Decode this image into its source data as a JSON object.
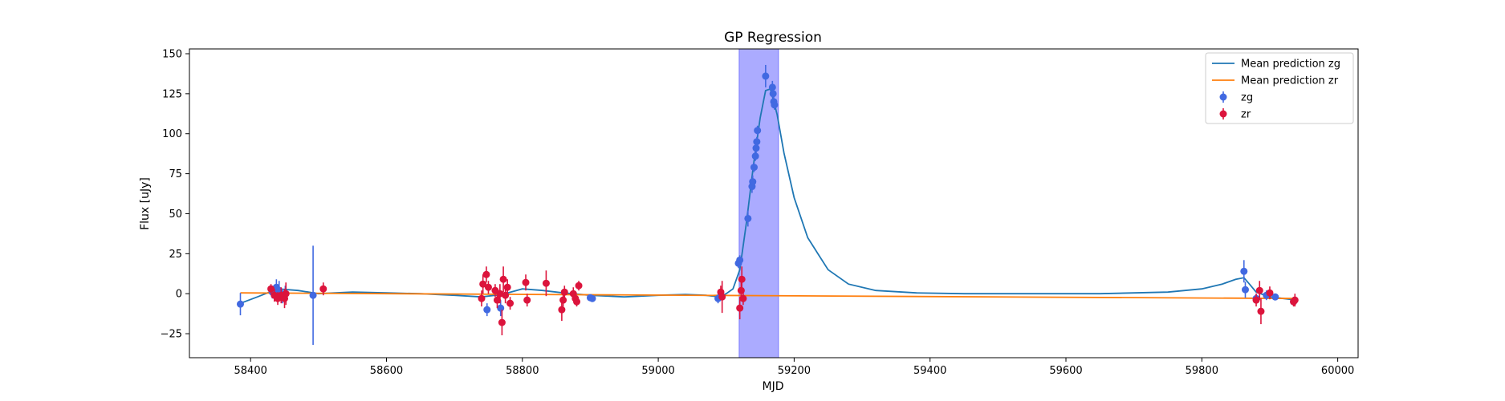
{
  "chart_data": {
    "type": "scatter",
    "title": "GP Regression",
    "xlabel": "MJD",
    "ylabel": "Flux [uJy]",
    "xlim": [
      58310,
      60030
    ],
    "ylim": [
      -40,
      153
    ],
    "xticks": [
      58400,
      58600,
      58800,
      59000,
      59200,
      59400,
      59600,
      59800,
      60000
    ],
    "yticks": [
      -25,
      0,
      25,
      50,
      75,
      100,
      125,
      150
    ],
    "grid": false,
    "legend_position": "top-right",
    "shaded_region": {
      "x_range": [
        59119,
        59177
      ],
      "color": "#0000ff",
      "alpha": 0.33
    },
    "series": [
      {
        "name": "Mean prediction zg",
        "kind": "line",
        "color": "#1f77b4",
        "x": [
          58385,
          58410,
          58440,
          58470,
          58500,
          58550,
          58600,
          58650,
          58700,
          58740,
          58770,
          58800,
          58830,
          58860,
          58900,
          58950,
          59000,
          59040,
          59070,
          59090,
          59100,
          59110,
          59120,
          59130,
          59140,
          59150,
          59158,
          59165,
          59175,
          59185,
          59200,
          59220,
          59250,
          59280,
          59320,
          59380,
          59450,
          59550,
          59650,
          59750,
          59800,
          59830,
          59850,
          59862,
          59870,
          59880,
          59900,
          59940
        ],
        "y": [
          -6,
          -2,
          3,
          2,
          0,
          1,
          0.5,
          0,
          -1,
          -2,
          -0.5,
          3,
          2,
          0.5,
          -1,
          -2,
          -1,
          -0.5,
          -1,
          -2,
          0,
          3,
          15,
          45,
          80,
          110,
          127,
          128,
          112,
          88,
          60,
          35,
          15,
          6,
          2,
          0.5,
          0,
          0,
          0,
          1,
          3,
          6,
          9,
          10,
          6,
          1,
          -2,
          -4
        ]
      },
      {
        "name": "Mean prediction zr",
        "kind": "line",
        "color": "#ff7f0e",
        "x": [
          58385,
          59940
        ],
        "y": [
          0.5,
          -3
        ]
      },
      {
        "name": "zg",
        "kind": "errorbar",
        "color": "#4169e1",
        "points": [
          {
            "x": 58385,
            "y": -6.5,
            "err": 7
          },
          {
            "x": 58432,
            "y": 1,
            "err": 4
          },
          {
            "x": 58438,
            "y": 4,
            "err": 5
          },
          {
            "x": 58442,
            "y": 2,
            "err": 6
          },
          {
            "x": 58447,
            "y": -2,
            "err": 4
          },
          {
            "x": 58451,
            "y": 0,
            "err": 5
          },
          {
            "x": 58492,
            "y": -1,
            "err": 31
          },
          {
            "x": 58748,
            "y": -10,
            "err": 4
          },
          {
            "x": 58768,
            "y": -9,
            "err": 5
          },
          {
            "x": 58900,
            "y": -2.5,
            "err": 2
          },
          {
            "x": 58903,
            "y": -3,
            "err": 2
          },
          {
            "x": 59088,
            "y": -3,
            "err": 3
          },
          {
            "x": 59118,
            "y": 19,
            "err": 3
          },
          {
            "x": 59120,
            "y": 21,
            "err": 3
          },
          {
            "x": 59132,
            "y": 47,
            "err": 5
          },
          {
            "x": 59138,
            "y": 67,
            "err": 4
          },
          {
            "x": 59139,
            "y": 70,
            "err": 4
          },
          {
            "x": 59141,
            "y": 79,
            "err": 3
          },
          {
            "x": 59143,
            "y": 86,
            "err": 3
          },
          {
            "x": 59144,
            "y": 91,
            "err": 3
          },
          {
            "x": 59145,
            "y": 95,
            "err": 3
          },
          {
            "x": 59146,
            "y": 102,
            "err": 3
          },
          {
            "x": 59158,
            "y": 136,
            "err": 7
          },
          {
            "x": 59168,
            "y": 129,
            "err": 4
          },
          {
            "x": 59169,
            "y": 125,
            "err": 3
          },
          {
            "x": 59170,
            "y": 120,
            "err": 3
          },
          {
            "x": 59171,
            "y": 118,
            "err": 3
          },
          {
            "x": 59862,
            "y": 14,
            "err": 7
          },
          {
            "x": 59864,
            "y": 2.5,
            "err": 5
          },
          {
            "x": 59880,
            "y": -3,
            "err": 3
          },
          {
            "x": 59895,
            "y": -1,
            "err": 3
          },
          {
            "x": 59908,
            "y": -2,
            "err": 2
          },
          {
            "x": 59935,
            "y": -5,
            "err": 2
          }
        ]
      },
      {
        "name": "zr",
        "kind": "errorbar",
        "color": "#dc143c",
        "points": [
          {
            "x": 58430,
            "y": 3,
            "err": 3
          },
          {
            "x": 58435,
            "y": -1,
            "err": 4
          },
          {
            "x": 58440,
            "y": -3,
            "err": 4
          },
          {
            "x": 58445,
            "y": -1,
            "err": 5
          },
          {
            "x": 58450,
            "y": -3,
            "err": 6
          },
          {
            "x": 58452,
            "y": 0,
            "err": 7
          },
          {
            "x": 58507,
            "y": 3,
            "err": 4
          },
          {
            "x": 58740,
            "y": -3,
            "err": 5
          },
          {
            "x": 58742,
            "y": 6,
            "err": 6
          },
          {
            "x": 58747,
            "y": 12,
            "err": 5
          },
          {
            "x": 58750,
            "y": 4,
            "err": 4
          },
          {
            "x": 58760,
            "y": 2,
            "err": 4
          },
          {
            "x": 58763,
            "y": -4,
            "err": 5
          },
          {
            "x": 58767,
            "y": 0,
            "err": 6
          },
          {
            "x": 58770,
            "y": -18,
            "err": 8
          },
          {
            "x": 58772,
            "y": 9,
            "err": 8
          },
          {
            "x": 58775,
            "y": -1,
            "err": 5
          },
          {
            "x": 58778,
            "y": 4,
            "err": 5
          },
          {
            "x": 58782,
            "y": -6,
            "err": 4
          },
          {
            "x": 58805,
            "y": 7,
            "err": 5
          },
          {
            "x": 58807,
            "y": -4,
            "err": 4
          },
          {
            "x": 58835,
            "y": 6.5,
            "err": 8
          },
          {
            "x": 58858,
            "y": -10,
            "err": 7
          },
          {
            "x": 58860,
            "y": -4,
            "err": 4
          },
          {
            "x": 58862,
            "y": 1,
            "err": 4
          },
          {
            "x": 58875,
            "y": 0,
            "err": 4
          },
          {
            "x": 58878,
            "y": -3,
            "err": 3
          },
          {
            "x": 58880,
            "y": -5,
            "err": 3
          },
          {
            "x": 58883,
            "y": 5,
            "err": 3
          },
          {
            "x": 59092,
            "y": 1,
            "err": 4
          },
          {
            "x": 59094,
            "y": -2,
            "err": 10
          },
          {
            "x": 59120,
            "y": -9,
            "err": 7
          },
          {
            "x": 59122,
            "y": 2,
            "err": 5
          },
          {
            "x": 59123,
            "y": 9,
            "err": 8
          },
          {
            "x": 59125,
            "y": -3,
            "err": 4
          },
          {
            "x": 59880,
            "y": -4,
            "err": 4
          },
          {
            "x": 59885,
            "y": 2,
            "err": 6
          },
          {
            "x": 59887,
            "y": -11,
            "err": 8
          },
          {
            "x": 59900,
            "y": 0.5,
            "err": 4
          },
          {
            "x": 59935,
            "y": -5,
            "err": 3
          },
          {
            "x": 59937,
            "y": -4,
            "err": 4
          }
        ]
      }
    ]
  }
}
